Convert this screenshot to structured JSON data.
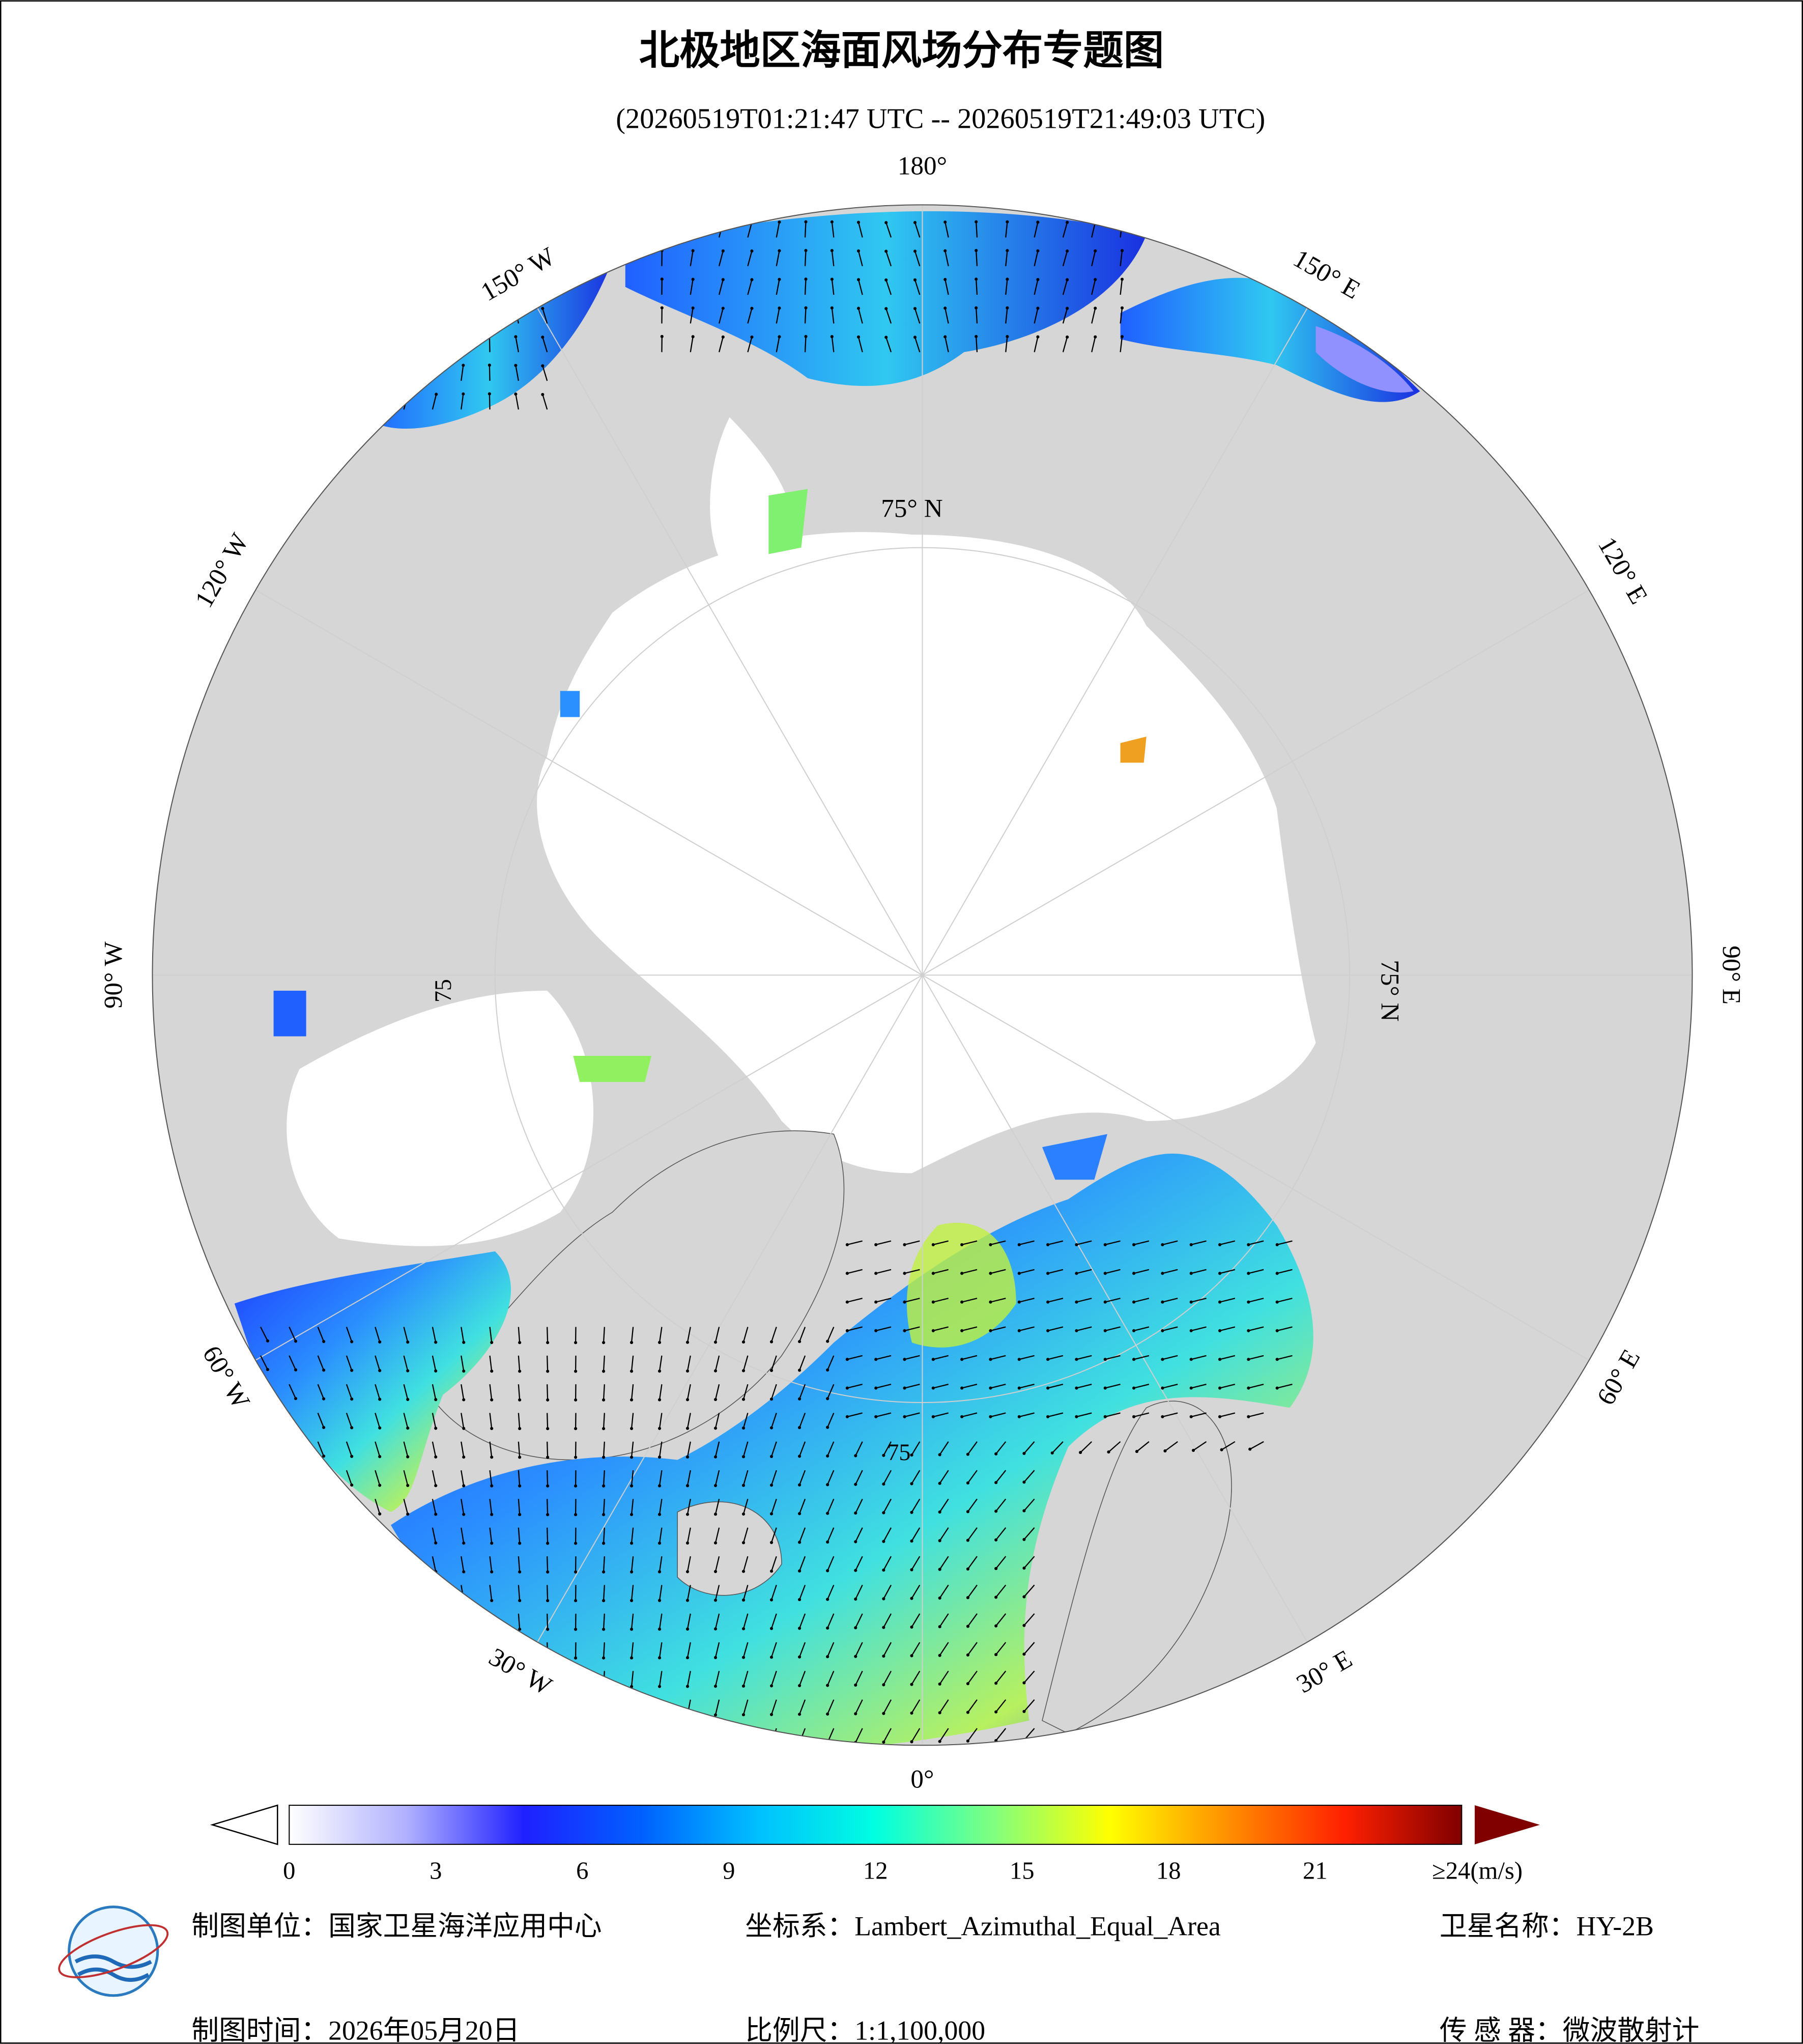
{
  "header": {
    "title": "北极地区海面风场分布专题图",
    "subtitle": "(20260519T01:21:47 UTC -- 20260519T21:49:03 UTC)"
  },
  "map": {
    "lon_labels": [
      {
        "value": 180,
        "label": "180°"
      },
      {
        "value": 150,
        "label": "150° E"
      },
      {
        "value": 120,
        "label": "120° E"
      },
      {
        "value": 90,
        "label": "90° E"
      },
      {
        "value": 60,
        "label": "60° E"
      },
      {
        "value": 30,
        "label": "30° E"
      },
      {
        "value": 0,
        "label": "0°"
      },
      {
        "value": -30,
        "label": "30° W"
      },
      {
        "value": -60,
        "label": "60° W"
      },
      {
        "value": -90,
        "label": "90° W"
      },
      {
        "value": -120,
        "label": "120° W"
      },
      {
        "value": -150,
        "label": "150° W"
      }
    ],
    "lat_labels": [
      "75° N",
      "75° N",
      "75",
      "75"
    ]
  },
  "colorbar": {
    "range": [
      0,
      24
    ],
    "ticks": [
      0,
      3,
      6,
      9,
      12,
      15,
      18,
      21,
      {
        "value": 24,
        "label": "≥24(m/s)"
      }
    ],
    "colors": [
      "#ffffff",
      "#b0b0ff",
      "#2020ff",
      "#0060ff",
      "#00c0ff",
      "#00ffe0",
      "#80ff80",
      "#ffff00",
      "#ff9000",
      "#ff2000",
      "#800000"
    ]
  },
  "footer": {
    "producer": "制图单位：国家卫星海洋应用中心",
    "projection": "坐标系：Lambert_Azimuthal_Equal_Area",
    "satellite": "卫星名称：HY-2B",
    "date": "制图时间：2026年05月20日",
    "scale": "比例尺：1:1,100,000",
    "sensor": "传 感 器：微波散射计"
  }
}
